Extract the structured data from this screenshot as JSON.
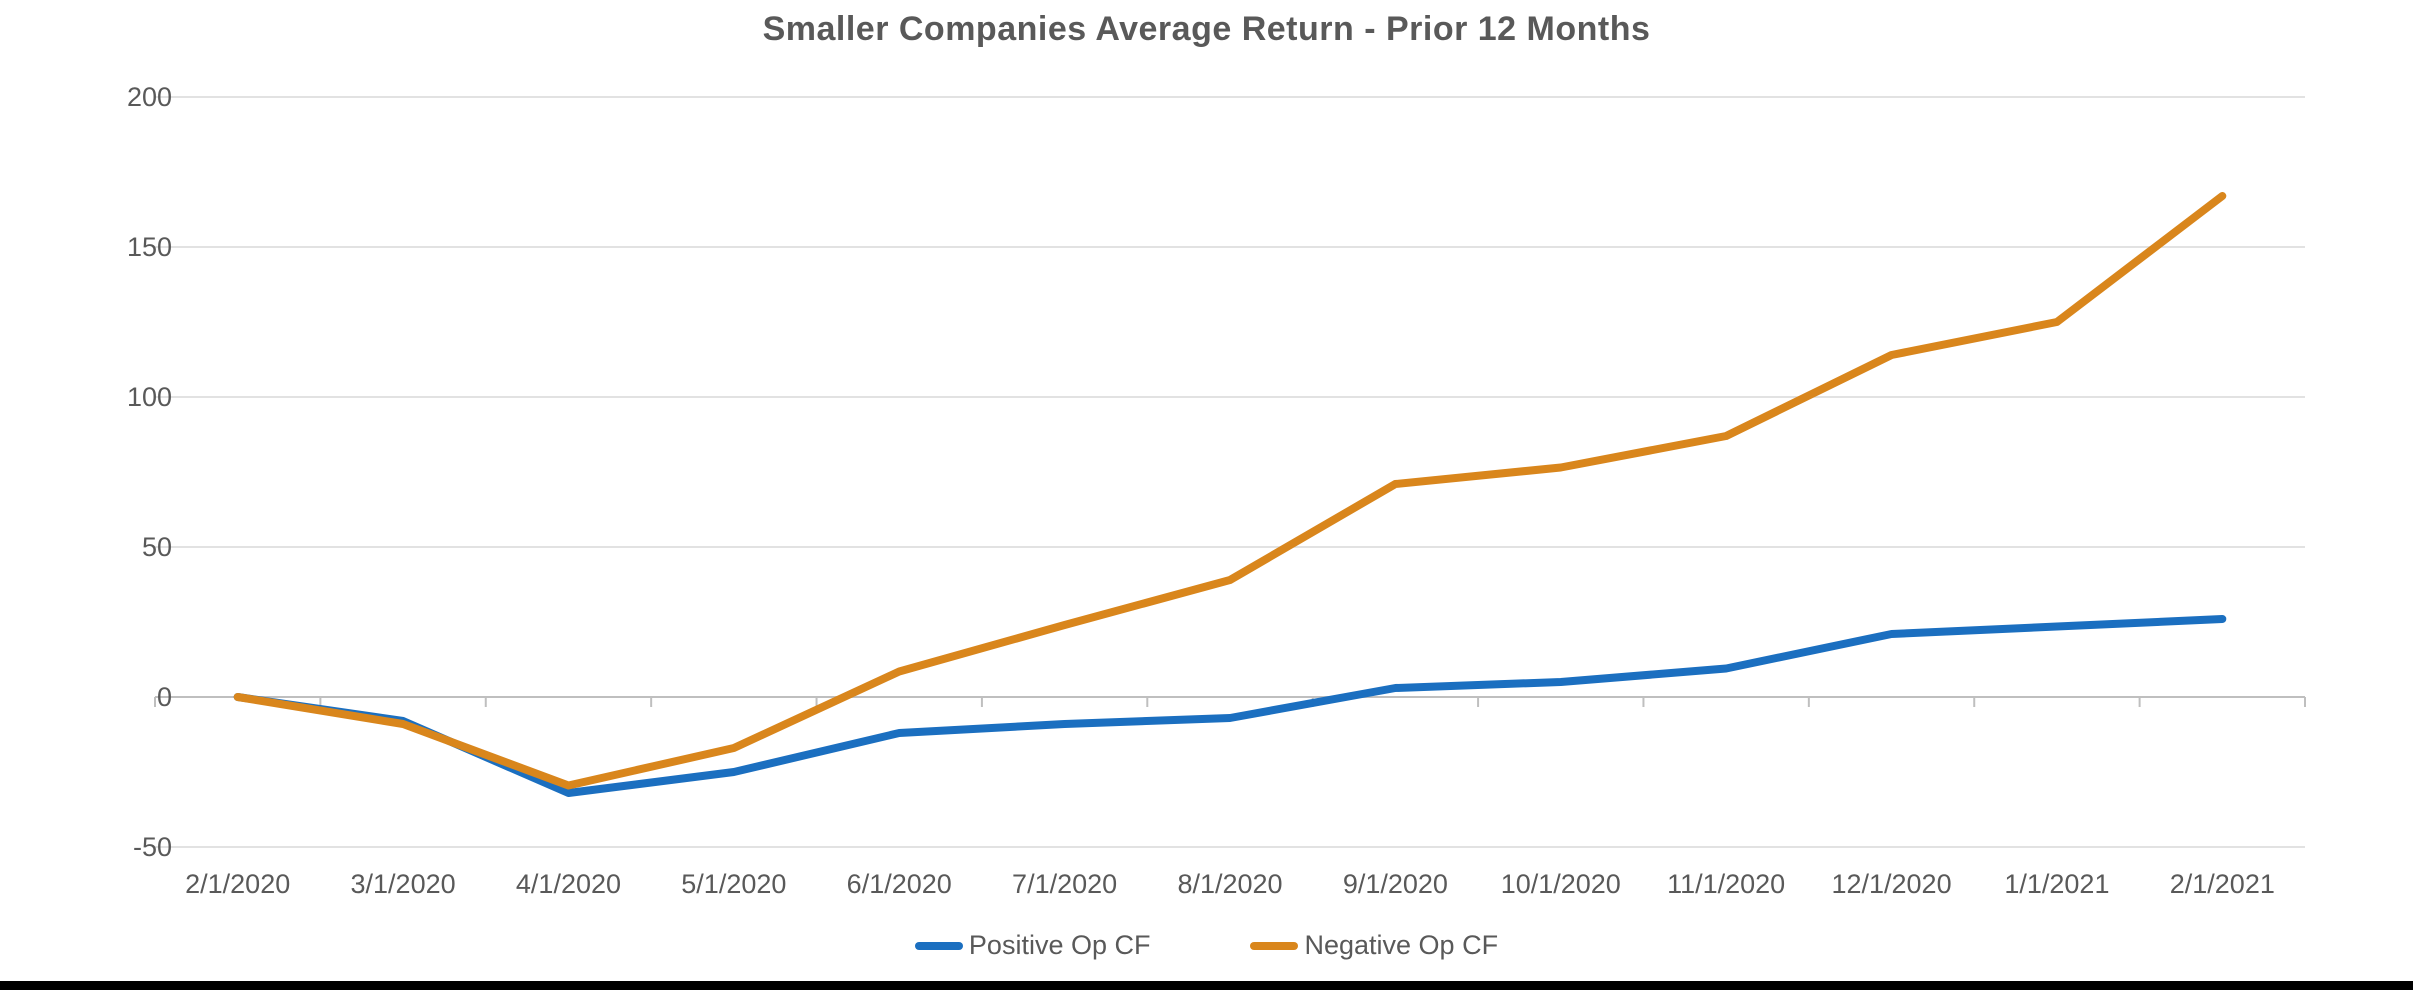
{
  "chart_data": {
    "type": "line",
    "title": "Smaller Companies Average Return - Prior 12 Months",
    "categories": [
      "2/1/2020",
      "3/1/2020",
      "4/1/2020",
      "5/1/2020",
      "6/1/2020",
      "7/1/2020",
      "8/1/2020",
      "9/1/2020",
      "10/1/2020",
      "11/1/2020",
      "12/1/2020",
      "1/1/2021",
      "2/1/2021"
    ],
    "series": [
      {
        "name": "Positive Op CF",
        "color": "#1B6FC0",
        "values": [
          0,
          -8,
          -32,
          -25,
          -12,
          -9,
          -7,
          3,
          5,
          9.5,
          21,
          23.5,
          26
        ]
      },
      {
        "name": "Negative Op CF",
        "color": "#D9861C",
        "values": [
          0,
          -9,
          -29.5,
          -17,
          8.5,
          24,
          39,
          71,
          76.5,
          87,
          114,
          125,
          167
        ]
      }
    ],
    "y_axis": {
      "ticks": [
        200,
        150,
        100,
        50,
        0,
        -50
      ],
      "min": -50,
      "max": 200
    },
    "x_axis_label": "",
    "y_axis_label": "",
    "grid": true,
    "legend_position": "bottom",
    "text_color": "#595959",
    "gridline_color": "#D9D9D9",
    "axis_color": "#BFBFBF"
  },
  "page": {
    "bottom_bar_color": "#000000"
  }
}
